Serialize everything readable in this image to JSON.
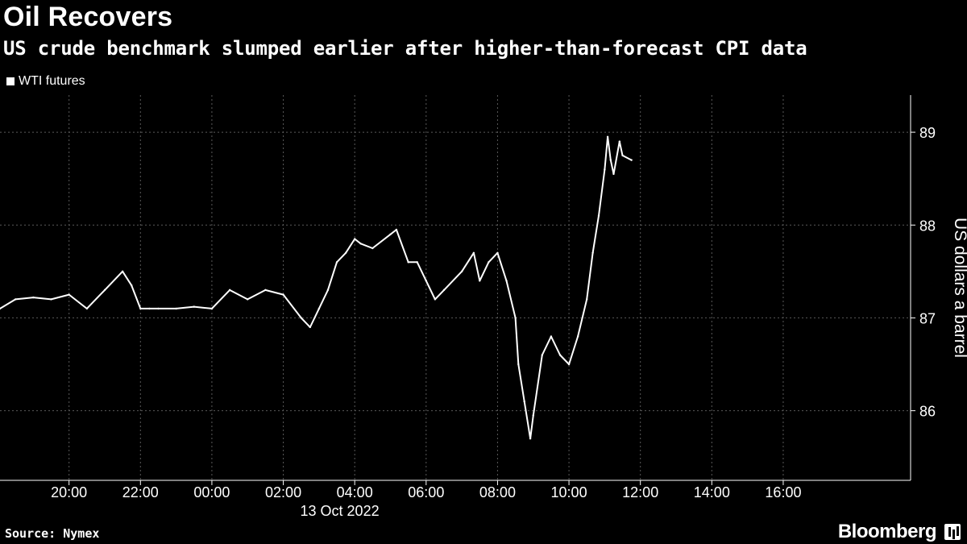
{
  "header": {
    "title": "Oil Recovers",
    "subtitle": "US crude benchmark slumped earlier after higher-than-forecast CPI data"
  },
  "footer": {
    "source": "Source: Nymex",
    "brand": "Bloomberg"
  },
  "colors": {
    "background": "#000000",
    "line": "#ffffff",
    "grid": "#5a5a5a"
  },
  "chart_data": {
    "type": "line",
    "title": "Oil Recovers",
    "subtitle": "US crude benchmark slumped earlier after higher-than-forecast CPI data",
    "ylabel": "US dollars a barrel",
    "date_label": "13 Oct 2022",
    "x_ticks": [
      "20:00",
      "22:00",
      "00:00",
      "02:00",
      "04:00",
      "06:00",
      "08:00",
      "10:00",
      "12:00",
      "14:00",
      "16:00"
    ],
    "y_ticks": [
      86,
      87,
      88,
      89
    ],
    "ylim": [
      85.25,
      89.4
    ],
    "xlim": [
      "18:04",
      "19:34"
    ],
    "grid": true,
    "legend_position": "top-left",
    "series": [
      {
        "name": "WTI futures",
        "x": [
          "18:04",
          "18:30",
          "19:00",
          "19:30",
          "20:00",
          "20:30",
          "21:00",
          "21:30",
          "21:45",
          "22:00",
          "22:15",
          "22:30",
          "23:00",
          "23:30",
          "00:00",
          "00:30",
          "01:00",
          "01:30",
          "02:00",
          "02:30",
          "02:45",
          "03:00",
          "03:15",
          "03:30",
          "03:45",
          "04:00",
          "04:10",
          "04:30",
          "05:00",
          "05:10",
          "05:30",
          "05:45",
          "06:00",
          "06:15",
          "06:30",
          "07:00",
          "07:20",
          "07:30",
          "07:45",
          "08:00",
          "08:15",
          "08:30",
          "08:35",
          "08:45",
          "08:55",
          "09:00",
          "09:15",
          "09:30",
          "09:45",
          "10:00",
          "10:15",
          "10:30",
          "10:40",
          "10:50",
          "11:00",
          "11:05",
          "11:10",
          "11:15",
          "11:25",
          "11:30",
          "11:45"
        ],
        "values": [
          87.1,
          87.2,
          87.22,
          87.2,
          87.25,
          87.1,
          87.3,
          87.5,
          87.35,
          87.1,
          87.1,
          87.1,
          87.1,
          87.12,
          87.1,
          87.3,
          87.2,
          87.3,
          87.25,
          87.0,
          86.9,
          87.1,
          87.3,
          87.6,
          87.7,
          87.85,
          87.8,
          87.75,
          87.9,
          87.95,
          87.6,
          87.6,
          87.4,
          87.2,
          87.3,
          87.5,
          87.7,
          87.4,
          87.6,
          87.7,
          87.4,
          87.0,
          86.5,
          86.1,
          85.7,
          85.95,
          86.6,
          86.8,
          86.6,
          86.5,
          86.8,
          87.2,
          87.7,
          88.1,
          88.6,
          88.95,
          88.7,
          88.55,
          88.9,
          88.75,
          88.7
        ]
      }
    ]
  }
}
